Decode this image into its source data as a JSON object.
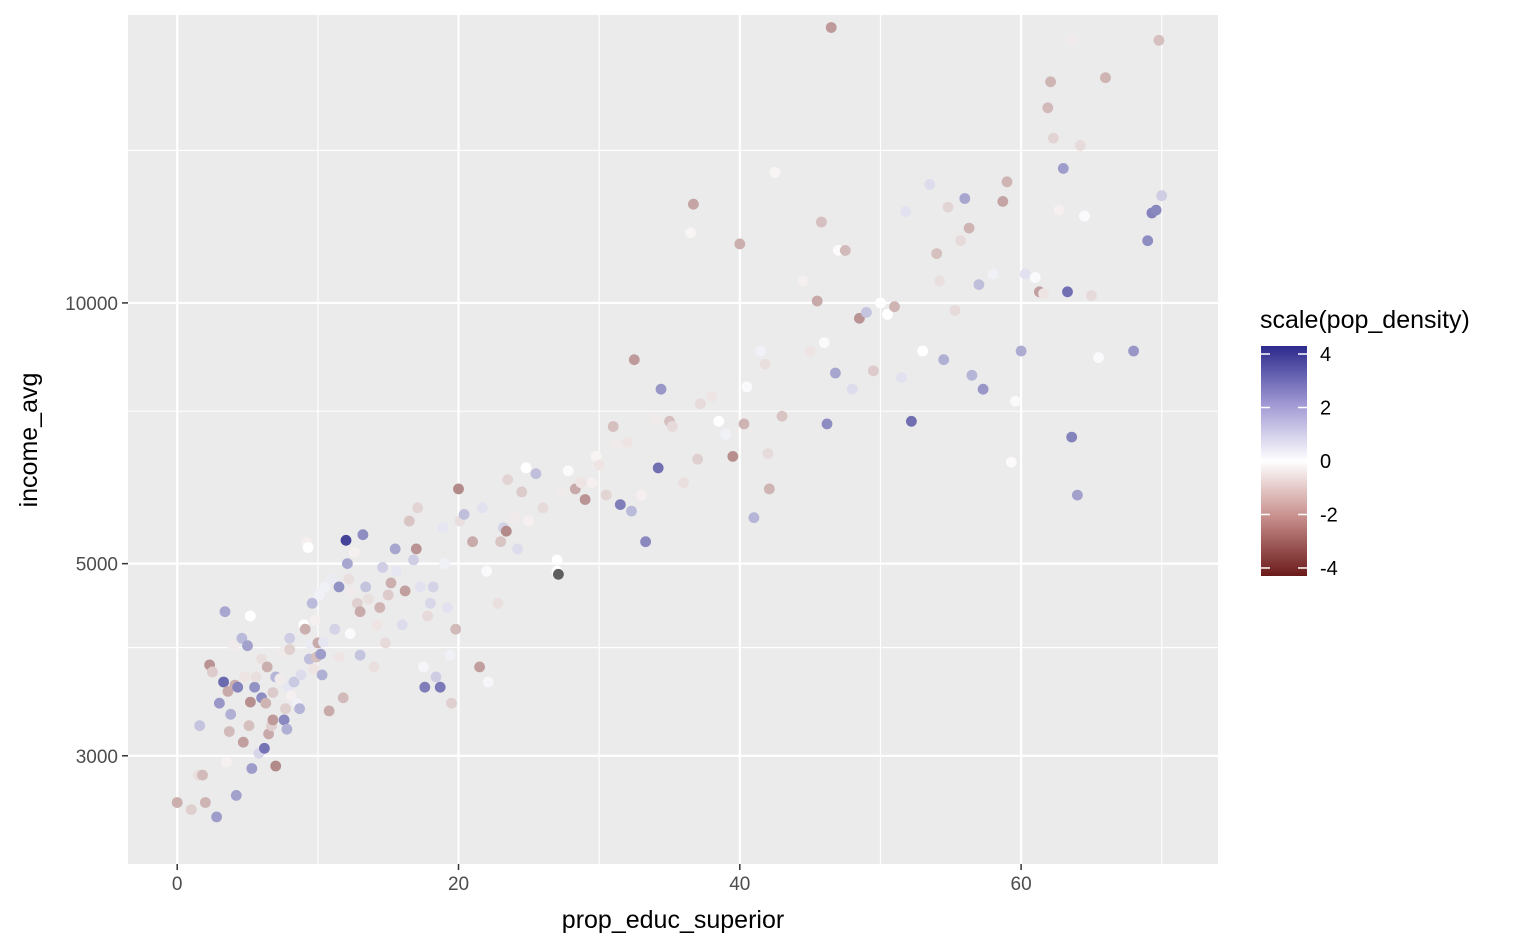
{
  "chart_data": {
    "type": "scatter",
    "title": "",
    "xlabel": "prop_educ_superior",
    "ylabel": "income_avg",
    "x_log": false,
    "y_log": true,
    "xlim": [
      -3.5,
      74
    ],
    "ylim": [
      2250,
      21500
    ],
    "x_ticks": [
      0,
      20,
      40,
      60
    ],
    "x_tick_labels": [
      "0",
      "20",
      "40",
      "60"
    ],
    "y_ticks": [
      3000,
      5000,
      10000
    ],
    "y_tick_labels": [
      "3000",
      "5000",
      "10000"
    ],
    "y_minor_ticks": [
      4000,
      7500,
      15000
    ],
    "grid": true,
    "legend": {
      "title": "scale(pop_density)",
      "position": "right",
      "type": "colorbar",
      "ticks": [
        4,
        2,
        0,
        -2,
        -4
      ],
      "tick_labels": [
        "4",
        "2",
        "0",
        "-2",
        "-4"
      ],
      "range": [
        -4.3,
        4.3
      ],
      "colors": {
        "low": "#6b1a1a",
        "mid": "#ffffff",
        "high": "#2c2a8c"
      }
    },
    "colors": {
      "panel": "#ebebeb",
      "grid": "#ffffff",
      "na": "#5e5e5e"
    },
    "points": [
      [
        0.0,
        2650,
        -1.5
      ],
      [
        1.0,
        2600,
        -0.9
      ],
      [
        1.5,
        2850,
        -0.6
      ],
      [
        1.6,
        3250,
        1.2
      ],
      [
        1.8,
        2850,
        -1.3
      ],
      [
        2.0,
        2650,
        -1.4
      ],
      [
        2.3,
        3820,
        -2.0
      ],
      [
        2.5,
        3750,
        -1.0
      ],
      [
        2.8,
        2550,
        2.0
      ],
      [
        3.0,
        3450,
        2.1
      ],
      [
        3.3,
        3650,
        3.0
      ],
      [
        3.4,
        4400,
        1.8
      ],
      [
        3.5,
        2950,
        -0.3
      ],
      [
        3.6,
        3560,
        -1.6
      ],
      [
        3.7,
        3200,
        -1.3
      ],
      [
        3.8,
        3350,
        1.6
      ],
      [
        4.0,
        4020,
        -0.4
      ],
      [
        4.1,
        3620,
        -1.5
      ],
      [
        4.2,
        2700,
        1.9
      ],
      [
        4.3,
        3600,
        2.5
      ],
      [
        4.6,
        4100,
        1.4
      ],
      [
        4.7,
        3110,
        -1.8
      ],
      [
        4.8,
        3700,
        -0.5
      ],
      [
        5.0,
        4020,
        1.9
      ],
      [
        5.1,
        3250,
        -1.2
      ],
      [
        5.2,
        3460,
        -2.1
      ],
      [
        5.2,
        4350,
        0.0
      ],
      [
        5.3,
        2900,
        2.0
      ],
      [
        5.5,
        3600,
        2.2
      ],
      [
        5.6,
        3700,
        -0.6
      ],
      [
        5.8,
        3020,
        0.8
      ],
      [
        6.0,
        3500,
        2.3
      ],
      [
        6.0,
        3880,
        -0.6
      ],
      [
        6.2,
        3060,
        2.8
      ],
      [
        6.3,
        3450,
        -1.4
      ],
      [
        6.4,
        3800,
        -1.5
      ],
      [
        6.5,
        3180,
        -1.6
      ],
      [
        6.7,
        3250,
        -0.9
      ],
      [
        6.8,
        3300,
        -1.9
      ],
      [
        6.8,
        3550,
        -1.0
      ],
      [
        7.0,
        2920,
        -2.2
      ],
      [
        7.0,
        3700,
        1.5
      ],
      [
        7.3,
        3680,
        -0.4
      ],
      [
        7.5,
        3950,
        -0.4
      ],
      [
        7.6,
        3300,
        2.4
      ],
      [
        7.7,
        3400,
        -0.9
      ],
      [
        7.8,
        3220,
        1.6
      ],
      [
        7.9,
        3600,
        0.5
      ],
      [
        8.0,
        4100,
        1.0
      ],
      [
        8.0,
        3980,
        -0.9
      ],
      [
        8.1,
        3520,
        -0.3
      ],
      [
        8.3,
        3650,
        1.1
      ],
      [
        8.5,
        3450,
        0.3
      ],
      [
        8.7,
        3400,
        1.5
      ],
      [
        8.8,
        3720,
        0.7
      ],
      [
        9.0,
        4250,
        0.0
      ],
      [
        9.1,
        4200,
        -1.5
      ],
      [
        9.2,
        5290,
        -0.3
      ],
      [
        9.3,
        5220,
        0.0
      ],
      [
        9.4,
        3880,
        1.3
      ],
      [
        9.5,
        4030,
        0.4
      ],
      [
        9.6,
        4500,
        1.4
      ],
      [
        9.7,
        3780,
        -0.5
      ],
      [
        9.8,
        4300,
        -0.3
      ],
      [
        9.9,
        3900,
        -1.2
      ],
      [
        10.0,
        4050,
        -1.6
      ],
      [
        10.1,
        4600,
        0.3
      ],
      [
        10.2,
        3930,
        2.0
      ],
      [
        10.3,
        3720,
        1.6
      ],
      [
        10.4,
        4060,
        0.5
      ],
      [
        10.5,
        4700,
        0.3
      ],
      [
        10.8,
        3380,
        -1.6
      ],
      [
        11.0,
        4800,
        0.4
      ],
      [
        11.2,
        4200,
        0.9
      ],
      [
        11.5,
        4700,
        2.2
      ],
      [
        11.5,
        3900,
        -0.5
      ],
      [
        11.8,
        3500,
        -1.3
      ],
      [
        12.0,
        5320,
        3.8
      ],
      [
        12.1,
        5000,
        1.8
      ],
      [
        12.2,
        4800,
        -0.6
      ],
      [
        12.3,
        4150,
        0.1
      ],
      [
        12.4,
        4650,
        -0.4
      ],
      [
        12.6,
        5150,
        -0.3
      ],
      [
        12.8,
        4500,
        -0.9
      ],
      [
        13.0,
        3920,
        1.2
      ],
      [
        13.0,
        4400,
        -1.6
      ],
      [
        13.2,
        5400,
        2.3
      ],
      [
        13.4,
        4700,
        1.2
      ],
      [
        13.6,
        4550,
        -0.6
      ],
      [
        14.0,
        3800,
        -0.6
      ],
      [
        14.2,
        4250,
        -0.5
      ],
      [
        14.4,
        4450,
        -1.4
      ],
      [
        14.6,
        4950,
        1.0
      ],
      [
        14.8,
        4050,
        -0.7
      ],
      [
        15.0,
        4600,
        -1.0
      ],
      [
        15.2,
        4750,
        -1.5
      ],
      [
        15.5,
        5200,
        1.8
      ],
      [
        15.6,
        4900,
        0.5
      ],
      [
        16.0,
        4250,
        0.7
      ],
      [
        16.2,
        4650,
        -1.8
      ],
      [
        16.5,
        5600,
        -1.1
      ],
      [
        16.8,
        5050,
        1.0
      ],
      [
        17.0,
        5200,
        -2.0
      ],
      [
        17.1,
        5800,
        -0.8
      ],
      [
        17.3,
        4700,
        0.6
      ],
      [
        17.5,
        3800,
        0.2
      ],
      [
        17.6,
        3600,
        2.6
      ],
      [
        17.8,
        4350,
        -0.7
      ],
      [
        18.0,
        4500,
        0.8
      ],
      [
        18.2,
        4700,
        0.9
      ],
      [
        18.4,
        3700,
        1.0
      ],
      [
        18.7,
        3600,
        2.7
      ],
      [
        18.9,
        5500,
        0.5
      ],
      [
        19.0,
        5000,
        0.3
      ],
      [
        19.2,
        4450,
        0.6
      ],
      [
        19.4,
        3920,
        0.3
      ],
      [
        19.5,
        3450,
        -0.9
      ],
      [
        19.8,
        4200,
        -1.3
      ],
      [
        20.0,
        6100,
        -2.2
      ],
      [
        20.1,
        5600,
        -0.6
      ],
      [
        20.4,
        5700,
        1.3
      ],
      [
        21.0,
        5300,
        -1.6
      ],
      [
        21.5,
        3800,
        -1.8
      ],
      [
        21.7,
        5800,
        0.6
      ],
      [
        22.0,
        4900,
        0.1
      ],
      [
        22.1,
        3650,
        0.2
      ],
      [
        22.8,
        4500,
        -0.6
      ],
      [
        23.0,
        5300,
        -1.1
      ],
      [
        23.2,
        5500,
        0.9
      ],
      [
        23.4,
        5450,
        -2.2
      ],
      [
        23.5,
        6250,
        -0.8
      ],
      [
        24.0,
        5650,
        -0.4
      ],
      [
        24.2,
        5200,
        0.7
      ],
      [
        24.5,
        6050,
        -1.0
      ],
      [
        24.8,
        6450,
        0.0
      ],
      [
        25.0,
        5600,
        -0.3
      ],
      [
        25.5,
        6350,
        1.3
      ],
      [
        26.0,
        5800,
        -0.7
      ],
      [
        27.0,
        5050,
        0.0
      ],
      [
        27.0,
        4900,
        0.0
      ],
      [
        27.1,
        4860,
        99.0
      ],
      [
        27.3,
        6050,
        -0.4
      ],
      [
        27.8,
        6400,
        -0.1
      ],
      [
        28.3,
        6100,
        -1.6
      ],
      [
        28.7,
        6200,
        -0.5
      ],
      [
        29.0,
        5930,
        -2.0
      ],
      [
        29.5,
        6200,
        -0.3
      ],
      [
        29.8,
        6650,
        -0.2
      ],
      [
        30.0,
        6500,
        -0.5
      ],
      [
        30.5,
        6000,
        -0.8
      ],
      [
        31.0,
        7200,
        -1.2
      ],
      [
        31.2,
        6850,
        -0.4
      ],
      [
        31.5,
        5850,
        2.6
      ],
      [
        32.0,
        6900,
        -0.5
      ],
      [
        32.3,
        5750,
        1.4
      ],
      [
        32.5,
        8600,
        -1.9
      ],
      [
        33.0,
        6000,
        -0.3
      ],
      [
        33.3,
        5300,
        2.4
      ],
      [
        34.0,
        7350,
        -0.4
      ],
      [
        34.2,
        6450,
        2.9
      ],
      [
        34.4,
        7950,
        2.1
      ],
      [
        35.0,
        7300,
        -1.2
      ],
      [
        35.2,
        7200,
        -0.7
      ],
      [
        36.0,
        6200,
        -0.6
      ],
      [
        36.5,
        12050,
        -0.2
      ],
      [
        36.7,
        13000,
        -1.7
      ],
      [
        37.0,
        6600,
        -0.9
      ],
      [
        37.2,
        7650,
        -0.7
      ],
      [
        38.0,
        7800,
        -0.5
      ],
      [
        38.5,
        7300,
        0.0
      ],
      [
        39.0,
        7050,
        0.3
      ],
      [
        39.5,
        6650,
        -2.1
      ],
      [
        40.0,
        11700,
        -1.5
      ],
      [
        40.3,
        7250,
        -1.4
      ],
      [
        40.5,
        8000,
        0.1
      ],
      [
        41.0,
        5650,
        1.5
      ],
      [
        41.5,
        8800,
        0.3
      ],
      [
        41.8,
        8500,
        -0.6
      ],
      [
        42.0,
        6700,
        -0.7
      ],
      [
        42.1,
        6100,
        -1.4
      ],
      [
        42.5,
        14150,
        -0.2
      ],
      [
        43.0,
        7400,
        -1.1
      ],
      [
        44.5,
        10600,
        -0.3
      ],
      [
        45.0,
        8800,
        -0.5
      ],
      [
        45.5,
        10050,
        -1.6
      ],
      [
        45.8,
        12400,
        -1.2
      ],
      [
        46.0,
        9000,
        0.1
      ],
      [
        46.2,
        7250,
        2.3
      ],
      [
        46.5,
        20800,
        -1.9
      ],
      [
        46.8,
        8300,
        1.8
      ],
      [
        47.0,
        11500,
        -0.1
      ],
      [
        47.5,
        11500,
        -1.3
      ],
      [
        48.0,
        7950,
        0.7
      ],
      [
        48.5,
        9600,
        -2.0
      ],
      [
        49.0,
        9750,
        1.2
      ],
      [
        49.5,
        8350,
        -1.0
      ],
      [
        50.0,
        10000,
        0.0
      ],
      [
        50.5,
        9700,
        0.0
      ],
      [
        51.0,
        9900,
        -1.4
      ],
      [
        51.5,
        8200,
        0.6
      ],
      [
        51.8,
        12750,
        0.6
      ],
      [
        52.2,
        7300,
        2.9
      ],
      [
        53.0,
        8800,
        0.0
      ],
      [
        53.5,
        13700,
        0.7
      ],
      [
        54.0,
        11400,
        -1.2
      ],
      [
        54.2,
        10600,
        -0.6
      ],
      [
        54.5,
        8600,
        1.6
      ],
      [
        54.8,
        12900,
        -0.8
      ],
      [
        55.3,
        9800,
        -0.7
      ],
      [
        55.7,
        11800,
        -0.7
      ],
      [
        56.0,
        13200,
        1.8
      ],
      [
        56.3,
        12200,
        -1.4
      ],
      [
        56.5,
        8250,
        1.5
      ],
      [
        57.0,
        10500,
        1.3
      ],
      [
        57.3,
        7950,
        2.1
      ],
      [
        58.0,
        10800,
        0.3
      ],
      [
        58.7,
        13100,
        -1.7
      ],
      [
        59.0,
        13800,
        -1.4
      ],
      [
        59.3,
        6550,
        -0.1
      ],
      [
        59.6,
        7700,
        0.1
      ],
      [
        60.0,
        8800,
        1.7
      ],
      [
        60.3,
        10800,
        0.6
      ],
      [
        61.0,
        10700,
        0.1
      ],
      [
        61.3,
        10300,
        -1.8
      ],
      [
        61.6,
        10250,
        -0.5
      ],
      [
        61.9,
        16800,
        -1.3
      ],
      [
        62.1,
        18000,
        -1.4
      ],
      [
        62.3,
        15500,
        -0.8
      ],
      [
        62.7,
        12800,
        -0.3
      ],
      [
        63.0,
        14300,
        2.0
      ],
      [
        63.3,
        10300,
        2.9
      ],
      [
        63.6,
        7000,
        2.5
      ],
      [
        64.0,
        6000,
        1.9
      ],
      [
        64.2,
        15200,
        -0.7
      ],
      [
        64.5,
        12600,
        0.1
      ],
      [
        65.0,
        10200,
        -0.7
      ],
      [
        65.5,
        8650,
        0.1
      ],
      [
        66.0,
        18200,
        -1.4
      ],
      [
        68.0,
        8800,
        2.1
      ],
      [
        69.0,
        11800,
        2.3
      ],
      [
        69.3,
        12700,
        2.5
      ],
      [
        69.6,
        12800,
        2.4
      ],
      [
        69.8,
        20100,
        -1.2
      ],
      [
        70.0,
        13300,
        1.0
      ],
      [
        63.6,
        20150,
        -0.4
      ]
    ]
  }
}
